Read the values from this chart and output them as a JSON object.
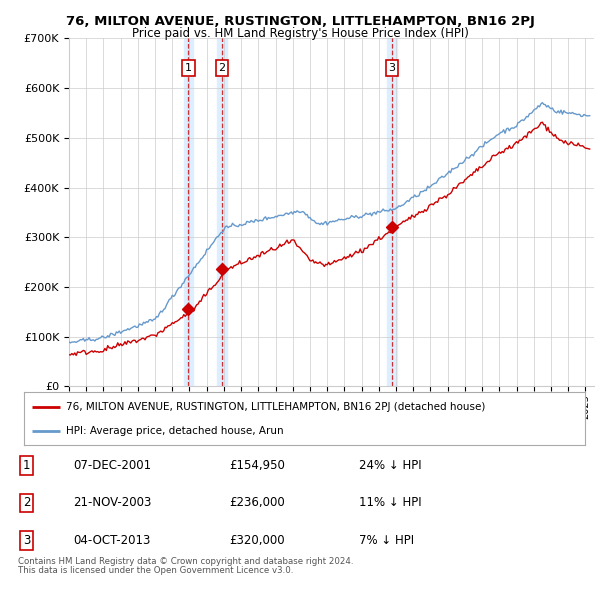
{
  "title1": "76, MILTON AVENUE, RUSTINGTON, LITTLEHAMPTON, BN16 2PJ",
  "title2": "Price paid vs. HM Land Registry's House Price Index (HPI)",
  "ylabel_ticks": [
    "£0",
    "£100K",
    "£200K",
    "£300K",
    "£400K",
    "£500K",
    "£600K",
    "£700K"
  ],
  "ylim": [
    0,
    700000
  ],
  "xlim_start": 1995.0,
  "xlim_end": 2025.5,
  "sale1_date": 2001.93,
  "sale2_date": 2003.89,
  "sale3_date": 2013.76,
  "sale1_price": 154950,
  "sale2_price": 236000,
  "sale3_price": 320000,
  "legend_line1": "76, MILTON AVENUE, RUSTINGTON, LITTLEHAMPTON, BN16 2PJ (detached house)",
  "legend_line2": "HPI: Average price, detached house, Arun",
  "table_rows": [
    [
      "1",
      "07-DEC-2001",
      "£154,950",
      "24% ↓ HPI"
    ],
    [
      "2",
      "21-NOV-2003",
      "£236,000",
      "11% ↓ HPI"
    ],
    [
      "3",
      "04-OCT-2013",
      "£320,000",
      "7% ↓ HPI"
    ]
  ],
  "footnote1": "Contains HM Land Registry data © Crown copyright and database right 2024.",
  "footnote2": "This data is licensed under the Open Government Licence v3.0.",
  "red_color": "#cc0000",
  "blue_color": "#6699cc",
  "shade_color": "#ddeeff",
  "bg_color": "#ffffff",
  "grid_color": "#cccccc"
}
